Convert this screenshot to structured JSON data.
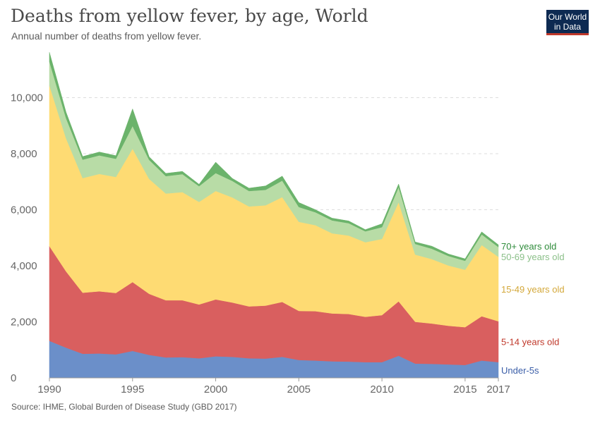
{
  "header": {
    "title": "Deaths from yellow fever, by age, World",
    "subtitle": "Annual number of deaths from yellow fever.",
    "logo": "Our World in Data"
  },
  "footer": {
    "source": "Source: IHME, Global Burden of Disease Study (GBD 2017)"
  },
  "colors": {
    "Under-5s": "#6b8fc9",
    "5-14 years old": "#d95f5f",
    "15-49 years old": "#fedb73",
    "50-69 years old": "#b8dca6",
    "70+ years old": "#6bb36b",
    "legend_text": {
      "Under-5s": "#3b5ea8",
      "5-14 years old": "#c0392b",
      "15-49 years old": "#d4a83a",
      "50-69 years old": "#8cc08a",
      "70+ years old": "#2e8b3a"
    }
  },
  "chart_data": {
    "type": "area",
    "stacked": true,
    "title": "Deaths from yellow fever, by age, World",
    "subtitle": "Annual number of deaths from yellow fever.",
    "xlabel": "",
    "ylabel": "",
    "x": [
      1990,
      1991,
      1992,
      1993,
      1994,
      1995,
      1996,
      1997,
      1998,
      1999,
      2000,
      2001,
      2002,
      2003,
      2004,
      2005,
      2006,
      2007,
      2008,
      2009,
      2010,
      2011,
      2012,
      2013,
      2014,
      2015,
      2016,
      2017
    ],
    "xticks": [
      1990,
      1995,
      2000,
      2005,
      2010,
      2015,
      2017
    ],
    "yticks": [
      0,
      2000,
      4000,
      6000,
      8000,
      10000
    ],
    "ytick_labels": [
      "0",
      "2,000",
      "4,000",
      "6,000",
      "8,000",
      "10,000"
    ],
    "xlim": [
      1990,
      2017
    ],
    "ylim": [
      0,
      11800
    ],
    "grid": "horizontal dashed",
    "series": [
      {
        "name": "Under-5s",
        "values": [
          1320,
          1080,
          860,
          870,
          840,
          960,
          820,
          730,
          740,
          700,
          770,
          750,
          700,
          690,
          750,
          640,
          620,
          590,
          580,
          560,
          560,
          790,
          510,
          500,
          480,
          460,
          620,
          560
        ]
      },
      {
        "name": "5-14 years old",
        "values": [
          3380,
          2720,
          2180,
          2220,
          2190,
          2460,
          2180,
          2040,
          2030,
          1920,
          2030,
          1940,
          1850,
          1890,
          1960,
          1750,
          1760,
          1710,
          1700,
          1620,
          1680,
          1940,
          1490,
          1440,
          1380,
          1350,
          1580,
          1460
        ]
      },
      {
        "name": "15-49 years old",
        "values": [
          5740,
          4750,
          4090,
          4190,
          4140,
          4760,
          4100,
          3810,
          3860,
          3660,
          3870,
          3750,
          3570,
          3580,
          3740,
          3180,
          3070,
          2860,
          2800,
          2660,
          2720,
          3540,
          2400,
          2300,
          2150,
          2050,
          2540,
          2300
        ]
      },
      {
        "name": "50-69 years old",
        "values": [
          850,
          720,
          660,
          660,
          650,
          810,
          680,
          620,
          640,
          560,
          640,
          590,
          550,
          550,
          590,
          530,
          460,
          460,
          440,
          390,
          420,
          540,
          380,
          370,
          340,
          320,
          380,
          350
        ]
      },
      {
        "name": "70+ years old",
        "values": [
          330,
          210,
          110,
          120,
          110,
          610,
          110,
          100,
          100,
          70,
          390,
          90,
          100,
          140,
          160,
          160,
          90,
          80,
          80,
          60,
          120,
          110,
          70,
          90,
          70,
          70,
          90,
          80
        ]
      }
    ]
  }
}
